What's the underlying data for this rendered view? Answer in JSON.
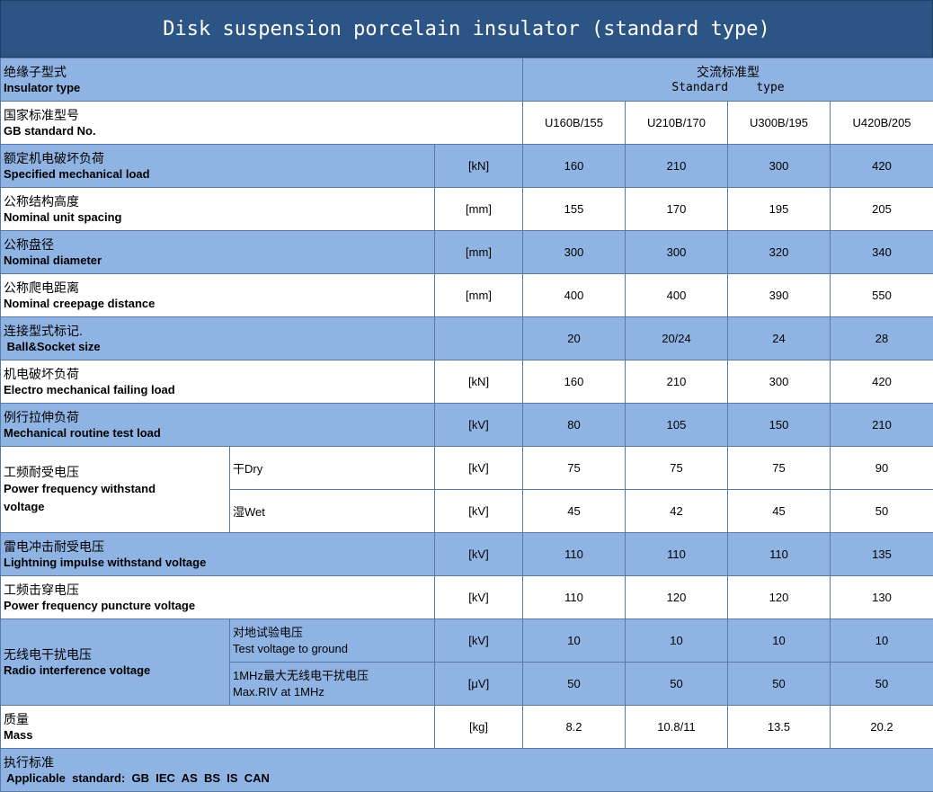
{
  "title": "Disk suspension porcelain insulator (standard type)",
  "header": {
    "zh": "绝缘子型式",
    "en": "Insulator type",
    "std_zh": "交流标准型",
    "std_en": "Standard    type"
  },
  "gb": {
    "zh": "国家标准型号",
    "en": "GB standard No.",
    "models": [
      "U160B/155",
      "U210B/170",
      "U300B/195",
      "U420B/205"
    ]
  },
  "rows": [
    {
      "zh": "额定机电破坏负荷",
      "en": "Specified mechanical load",
      "unit": "[kN]",
      "values": [
        "160",
        "210",
        "300",
        "420"
      ]
    },
    {
      "zh": "公称结构高度",
      "en": "Nominal unit spacing",
      "unit": "[mm]",
      "values": [
        "155",
        "170",
        "195",
        "205"
      ]
    },
    {
      "zh": "公称盘径",
      "en": "Nominal diameter",
      "unit": "[mm]",
      "values": [
        "300",
        "300",
        "320",
        "340"
      ]
    },
    {
      "zh": "公称爬电距离",
      "en": "Nominal creepage distance",
      "unit": "[mm]",
      "values": [
        "400",
        "400",
        "390",
        "550"
      ]
    },
    {
      "zh": "连接型式标记.",
      "en": " Ball&Socket size",
      "unit": "",
      "values": [
        "20",
        "20/24",
        "24",
        "28"
      ]
    },
    {
      "zh": "机电破坏负荷",
      "en": "Electro mechanical failing load",
      "unit": "[kN]",
      "values": [
        "160",
        "210",
        "300",
        "420"
      ]
    },
    {
      "zh": "例行拉伸负荷",
      "en": "Mechanical routine test load",
      "unit": "[kV]",
      "values": [
        "80",
        "105",
        "150",
        "210"
      ]
    }
  ],
  "pf_withstand": {
    "zh": "工频耐受电压",
    "en": "Power frequency withstand voltage",
    "dry": {
      "label": "干Dry",
      "unit": "[kV]",
      "values": [
        "75",
        "75",
        "75",
        "90"
      ]
    },
    "wet": {
      "label": "湿Wet",
      "unit": "[kV]",
      "values": [
        "45",
        "42",
        "45",
        "50"
      ]
    }
  },
  "lightning": {
    "zh": "雷电冲击耐受电压",
    "en": "Lightning impulse withstand voltage",
    "unit": "[kV]",
    "values": [
      "110",
      "110",
      "110",
      "135"
    ]
  },
  "puncture": {
    "zh": "工频击穿电压",
    "en": "Power frequency puncture voltage",
    "unit": "[kV]",
    "values": [
      "110",
      "120",
      "120",
      "130"
    ]
  },
  "radio": {
    "zh": "无线电干扰电压",
    "en": "Radio interference voltage",
    "test": {
      "zh": "对地试验电压",
      "en": "Test voltage to ground",
      "unit": "[kV]",
      "values": [
        "10",
        "10",
        "10",
        "10"
      ]
    },
    "riv": {
      "zh": "1MHz最大无线电干扰电压",
      "en": "Max.RIV at 1MHz",
      "unit": "[μV]",
      "values": [
        "50",
        "50",
        "50",
        "50"
      ]
    }
  },
  "mass": {
    "zh": "质量",
    "en": "Mass",
    "unit": "[kg]",
    "values": [
      "8.2",
      "10.8/11",
      "13.5",
      "20.2"
    ]
  },
  "applicable": {
    "zh": "执行标准",
    "en": " Applicable  standard:  GB  IEC  AS  BS  IS  CAN"
  }
}
